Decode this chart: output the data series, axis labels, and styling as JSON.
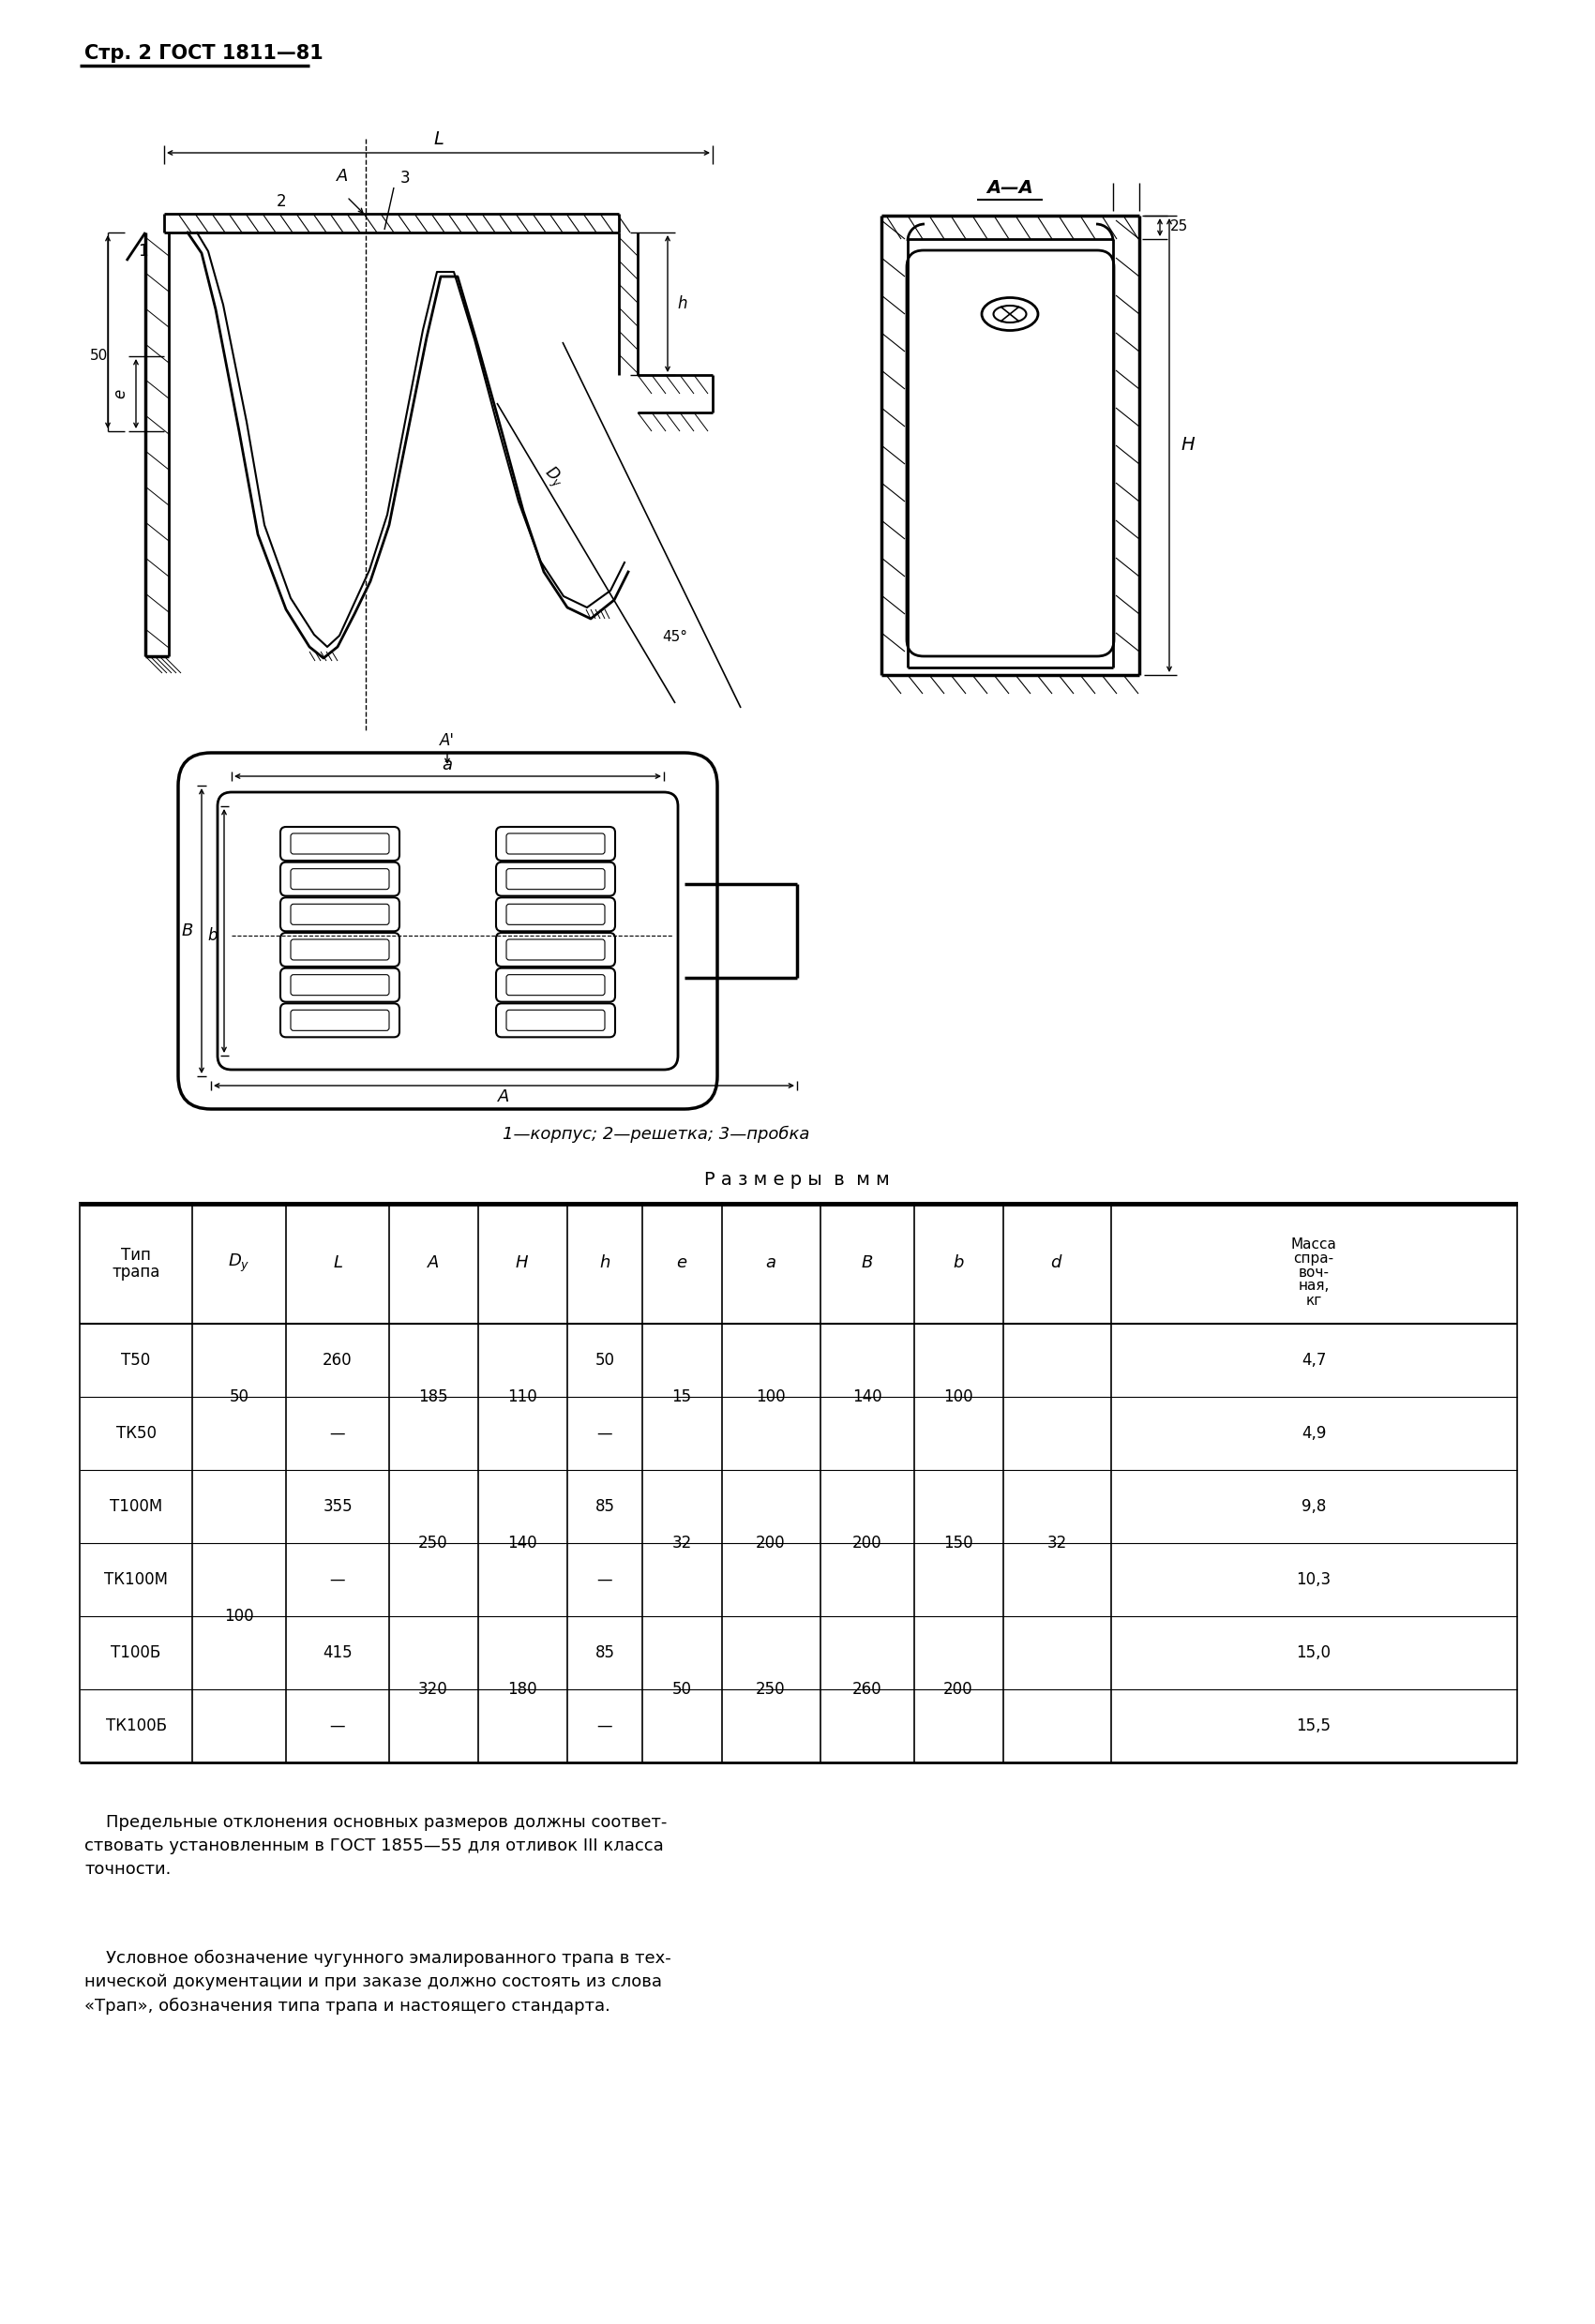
{
  "page_header": "Стр. 2 ГОСТ 1811—81",
  "caption": "1—корпус; 2—решетка; 3—пробка",
  "table_title": "Р а з м е р ы  в  м м",
  "footer_text1": "    Предельные отклонения основных размеров должны соответ-\nствовать установленным в ГОСТ 1855—55 для отливок III класса\nточности.",
  "footer_text2": "    Условное обозначение чугунного эмалированного трапа в тех-\nнической документации и при заказе должно состоять из слова\n«Трап», обозначения типа трапа и настоящего стандарта.",
  "bg_color": "#ffffff"
}
